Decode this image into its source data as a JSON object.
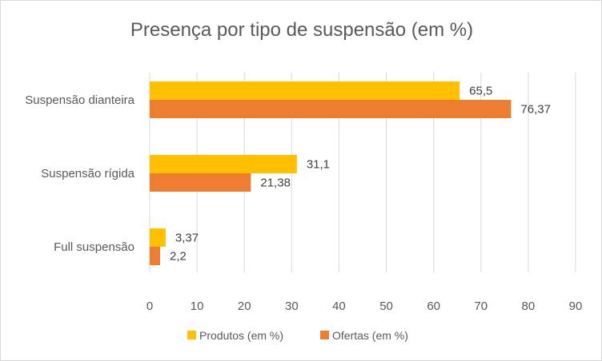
{
  "chart_data": {
    "type": "bar",
    "orientation": "horizontal",
    "title": "Presença por tipo de suspensão (em %)",
    "categories": [
      "Suspensão dianteira",
      "Suspensão rígida",
      "Full suspensão"
    ],
    "series": [
      {
        "name": "Produtos (em %)",
        "color": "#FFC000",
        "values": [
          65.5,
          31.1,
          3.37
        ],
        "labels": [
          "65,5",
          "31,1",
          "3,37"
        ]
      },
      {
        "name": "Ofertas (em %)",
        "color": "#ED7D31",
        "values": [
          76.37,
          21.38,
          2.2
        ],
        "labels": [
          "76,37",
          "21,38",
          "2,2"
        ]
      }
    ],
    "xlim": [
      0,
      90
    ],
    "xticks": [
      0,
      10,
      20,
      30,
      40,
      50,
      60,
      70,
      80,
      90
    ],
    "grid": true,
    "legend_position": "bottom"
  }
}
